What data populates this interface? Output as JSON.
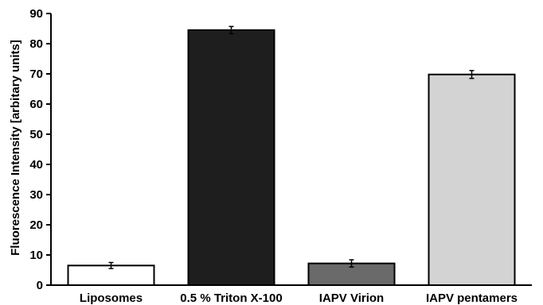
{
  "chart_data": {
    "type": "bar",
    "title": "",
    "xlabel": "",
    "ylabel": "Fluorescence Intensity [arbitary units]",
    "ylim": [
      0,
      90
    ],
    "yticks": [
      0,
      10,
      20,
      30,
      40,
      50,
      60,
      70,
      80,
      90
    ],
    "grid": false,
    "categories": [
      "Liposomes",
      "0.5 % Triton X-100",
      "IAPV Virion",
      "IAPV pentamers"
    ],
    "values": [
      6.5,
      84.5,
      7.2,
      69.8
    ],
    "errors": [
      1.0,
      1.2,
      1.2,
      1.3
    ],
    "colors": [
      "#ffffff",
      "#1e1e1e",
      "#6a6a6a",
      "#d3d3d3"
    ]
  }
}
